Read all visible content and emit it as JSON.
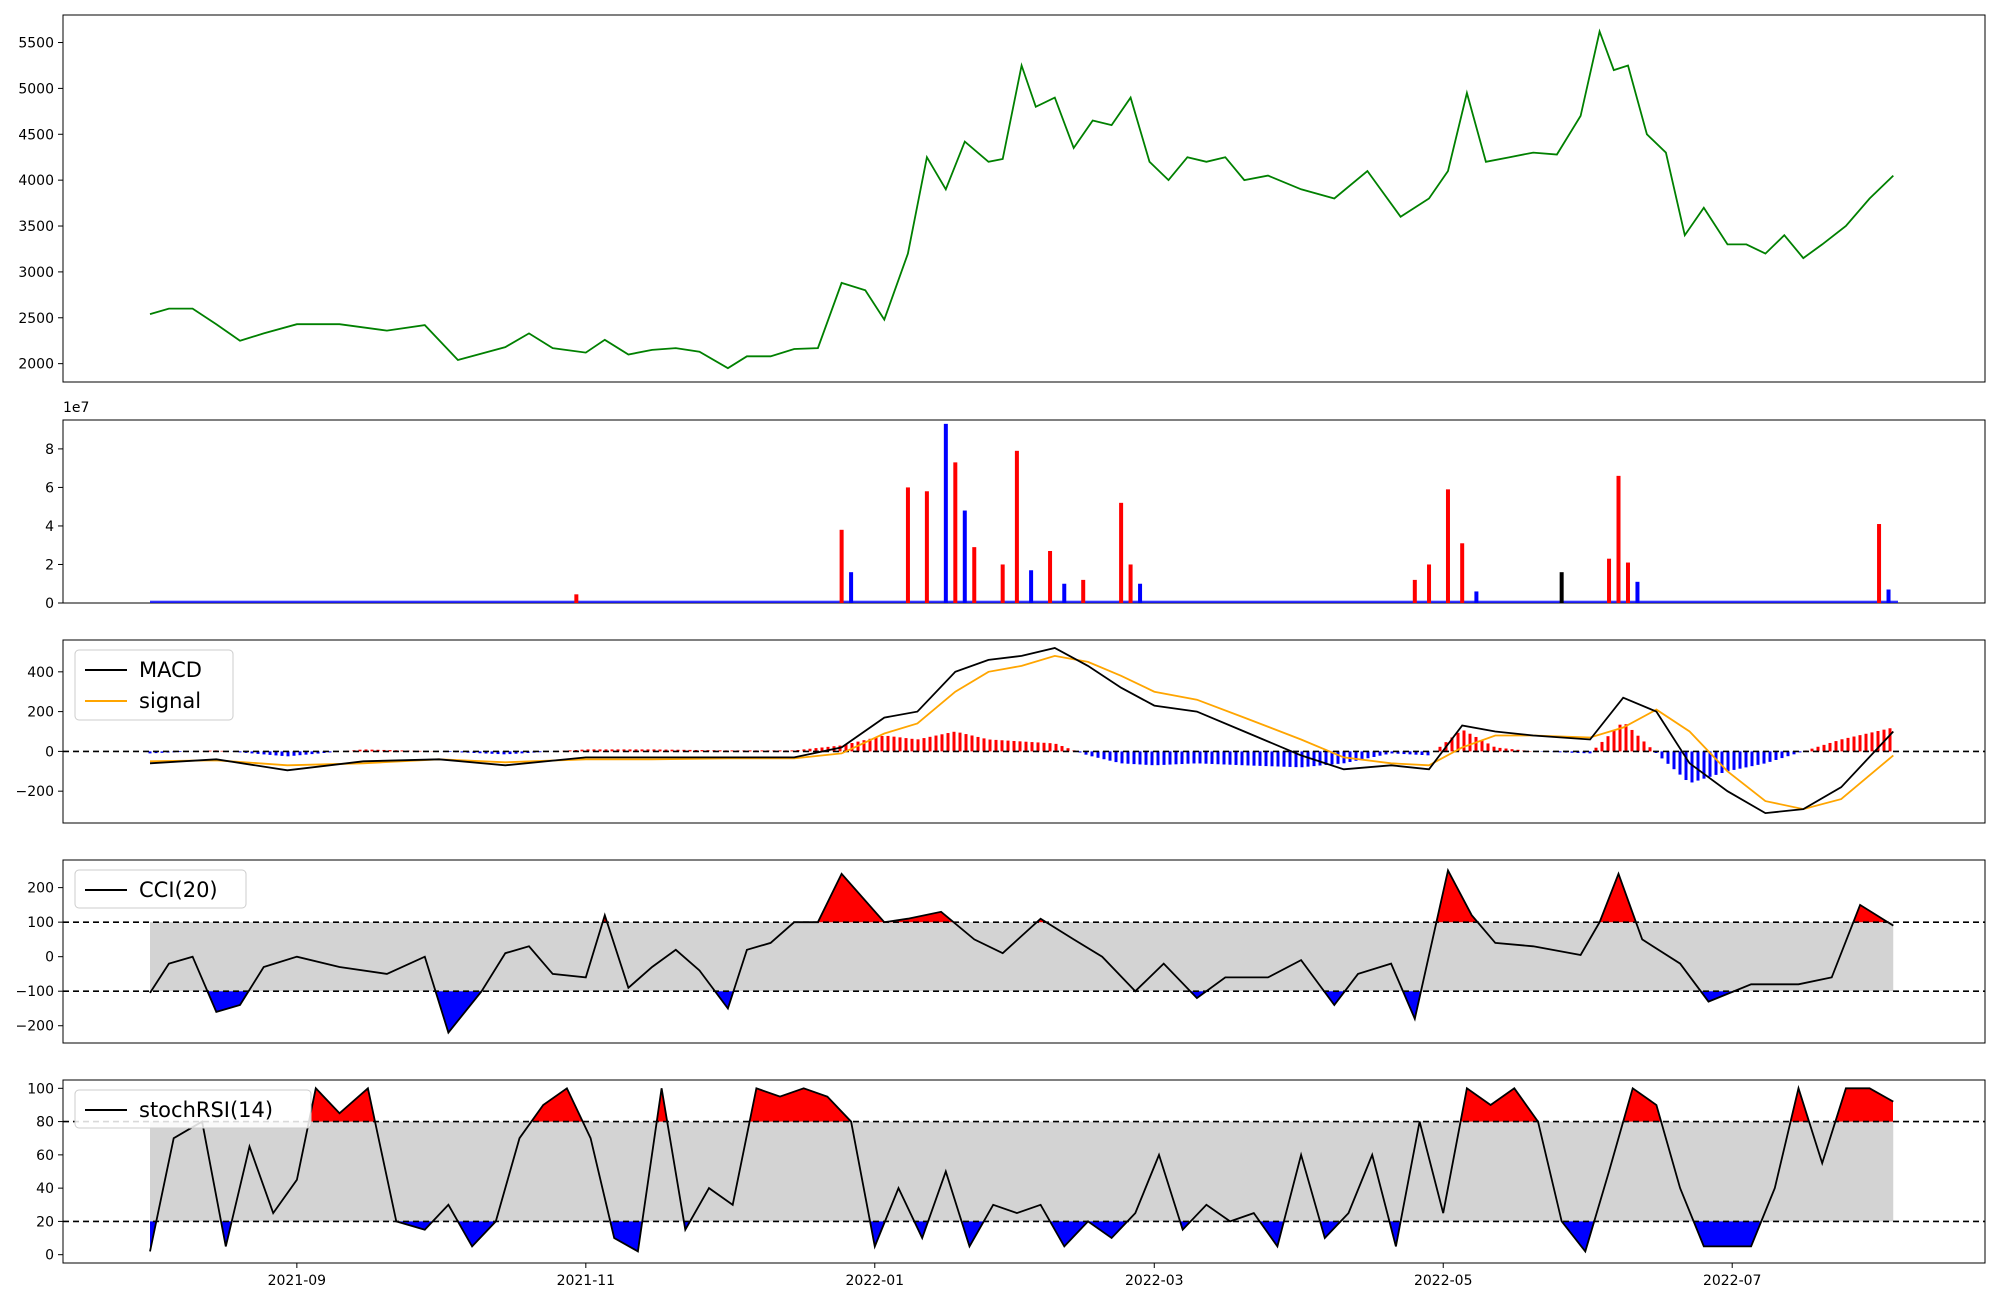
{
  "colors": {
    "price": "#008000",
    "up": "#ff0000",
    "down": "#0000ff",
    "neutral": "#000000",
    "macd": "#000000",
    "signal": "#ffa500",
    "band": "#d3d3d3",
    "ref_line": "#000000"
  },
  "x_axis": {
    "start_date": "2021-08-01",
    "end_date": "2022-08-05",
    "ticks": [
      "2021-09",
      "2021-11",
      "2022-01",
      "2022-03",
      "2022-05",
      "2022-07"
    ],
    "tick_dates": [
      "2021-09-01",
      "2021-11-01",
      "2022-01-01",
      "2022-03-01",
      "2022-05-01",
      "2022-07-01"
    ]
  },
  "chart_data": [
    {
      "type": "line",
      "name": "price",
      "ylim": [
        1800,
        5800
      ],
      "yticks": [
        2000,
        2500,
        3000,
        3500,
        4000,
        4500,
        5000,
        5500
      ],
      "x": [
        "2021-08-01",
        "2021-08-05",
        "2021-08-10",
        "2021-08-15",
        "2021-08-20",
        "2021-08-25",
        "2021-09-01",
        "2021-09-10",
        "2021-09-20",
        "2021-09-28",
        "2021-10-05",
        "2021-10-15",
        "2021-10-20",
        "2021-10-25",
        "2021-11-01",
        "2021-11-05",
        "2021-11-10",
        "2021-11-15",
        "2021-11-20",
        "2021-11-25",
        "2021-12-01",
        "2021-12-05",
        "2021-12-10",
        "2021-12-15",
        "2021-12-20",
        "2021-12-25",
        "2021-12-30",
        "2022-01-03",
        "2022-01-08",
        "2022-01-12",
        "2022-01-16",
        "2022-01-20",
        "2022-01-25",
        "2022-01-28",
        "2022-02-01",
        "2022-02-04",
        "2022-02-08",
        "2022-02-12",
        "2022-02-16",
        "2022-02-20",
        "2022-02-24",
        "2022-02-28",
        "2022-03-04",
        "2022-03-08",
        "2022-03-12",
        "2022-03-16",
        "2022-03-20",
        "2022-03-25",
        "2022-04-01",
        "2022-04-08",
        "2022-04-15",
        "2022-04-22",
        "2022-04-28",
        "2022-05-02",
        "2022-05-06",
        "2022-05-10",
        "2022-05-15",
        "2022-05-20",
        "2022-05-25",
        "2022-05-30",
        "2022-06-03",
        "2022-06-06",
        "2022-06-09",
        "2022-06-13",
        "2022-06-17",
        "2022-06-21",
        "2022-06-25",
        "2022-06-30",
        "2022-07-04",
        "2022-07-08",
        "2022-07-12",
        "2022-07-16",
        "2022-07-20",
        "2022-07-25",
        "2022-07-30",
        "2022-08-04"
      ],
      "y": [
        2540,
        2600,
        2600,
        2430,
        2250,
        2330,
        2430,
        2430,
        2360,
        2420,
        2040,
        2180,
        2330,
        2170,
        2120,
        2260,
        2100,
        2150,
        2170,
        2130,
        1950,
        2080,
        2080,
        2160,
        2170,
        2880,
        2800,
        2480,
        3200,
        4250,
        3900,
        4420,
        4200,
        4230,
        5250,
        4800,
        4900,
        4350,
        4650,
        4600,
        4900,
        4200,
        4000,
        4250,
        4200,
        4250,
        4000,
        4050,
        3900,
        3800,
        4100,
        3600,
        3800,
        4100,
        4950,
        4200,
        4250,
        4300,
        4280,
        4700,
        5620,
        5200,
        5250,
        4500,
        4300,
        3400,
        3700,
        3300,
        3300,
        3200,
        3400,
        3150,
        3300,
        3500,
        3800,
        4050
      ]
    },
    {
      "type": "bar",
      "name": "volume",
      "ylim": [
        0,
        95000000
      ],
      "yticks": [
        0,
        20000000,
        40000000,
        60000000,
        80000000
      ],
      "ytick_labels": [
        "0",
        "2",
        "4",
        "6",
        "8"
      ],
      "multiplier_label": "1e7",
      "x": [
        "2021-10-30",
        "2021-12-25",
        "2021-12-27",
        "2022-01-08",
        "2022-01-12",
        "2022-01-16",
        "2022-01-18",
        "2022-01-20",
        "2022-01-22",
        "2022-01-28",
        "2022-01-31",
        "2022-02-03",
        "2022-02-07",
        "2022-02-10",
        "2022-02-14",
        "2022-02-22",
        "2022-02-24",
        "2022-02-26",
        "2022-04-25",
        "2022-04-28",
        "2022-05-02",
        "2022-05-05",
        "2022-05-08",
        "2022-05-26",
        "2022-06-05",
        "2022-06-07",
        "2022-06-09",
        "2022-06-11",
        "2022-08-01",
        "2022-08-03"
      ],
      "values": [
        4500000,
        38000000,
        16000000,
        60000000,
        58000000,
        93000000,
        73000000,
        48000000,
        29000000,
        20000000,
        79000000,
        17000000,
        27000000,
        10000000,
        12000000,
        52000000,
        20000000,
        10000000,
        12000000,
        20000000,
        59000000,
        31000000,
        6000000,
        16000000,
        23000000,
        66000000,
        21000000,
        11000000,
        41000000,
        7000000
      ],
      "colors": [
        "up",
        "up",
        "down",
        "up",
        "up",
        "down",
        "up",
        "down",
        "up",
        "up",
        "up",
        "down",
        "up",
        "down",
        "up",
        "up",
        "up",
        "down",
        "up",
        "up",
        "up",
        "up",
        "down",
        "neutral",
        "up",
        "up",
        "up",
        "down",
        "up",
        "down"
      ],
      "baseline": {
        "value": 1200000,
        "from": "2021-08-01",
        "to": "2022-08-05"
      }
    },
    {
      "type": "line",
      "name": "macd",
      "ylim": [
        -360,
        560
      ],
      "yticks": [
        -200,
        0,
        200,
        400
      ],
      "reference_lines": [
        0
      ],
      "legend": [
        "MACD",
        "signal"
      ],
      "legend_position": "upper-left",
      "x": [
        "2021-08-01",
        "2021-08-15",
        "2021-08-30",
        "2021-09-15",
        "2021-10-01",
        "2021-10-15",
        "2021-11-01",
        "2021-11-15",
        "2021-12-01",
        "2021-12-15",
        "2021-12-25",
        "2022-01-03",
        "2022-01-10",
        "2022-01-18",
        "2022-01-25",
        "2022-02-01",
        "2022-02-08",
        "2022-02-15",
        "2022-02-22",
        "2022-03-01",
        "2022-03-10",
        "2022-03-20",
        "2022-04-01",
        "2022-04-10",
        "2022-04-20",
        "2022-04-28",
        "2022-05-05",
        "2022-05-12",
        "2022-05-20",
        "2022-06-01",
        "2022-06-08",
        "2022-06-15",
        "2022-06-22",
        "2022-06-30",
        "2022-07-08",
        "2022-07-16",
        "2022-07-24",
        "2022-08-04"
      ],
      "series": [
        {
          "name": "MACD",
          "values": [
            -60,
            -40,
            -95,
            -50,
            -40,
            -70,
            -30,
            -30,
            -30,
            -30,
            20,
            170,
            200,
            400,
            460,
            480,
            520,
            430,
            320,
            230,
            200,
            100,
            -20,
            -90,
            -70,
            -90,
            130,
            100,
            80,
            60,
            270,
            200,
            -60,
            -200,
            -310,
            -290,
            -180,
            100
          ]
        },
        {
          "name": "signal",
          "values": [
            -50,
            -45,
            -70,
            -60,
            -40,
            -55,
            -40,
            -40,
            -35,
            -35,
            -10,
            90,
            140,
            300,
            400,
            430,
            480,
            450,
            380,
            300,
            260,
            170,
            60,
            -30,
            -60,
            -70,
            20,
            80,
            80,
            70,
            120,
            210,
            100,
            -100,
            -250,
            -290,
            -240,
            -20
          ]
        }
      ]
    },
    {
      "type": "line",
      "name": "cci",
      "ylim": [
        -250,
        280
      ],
      "yticks": [
        -200,
        -100,
        0,
        100,
        200
      ],
      "reference_lines": [
        -100,
        100
      ],
      "legend": [
        "CCI(20)"
      ],
      "legend_position": "upper-left",
      "x": [
        "2021-08-01",
        "2021-08-05",
        "2021-08-10",
        "2021-08-15",
        "2021-08-20",
        "2021-08-25",
        "2021-09-01",
        "2021-09-10",
        "2021-09-20",
        "2021-09-28",
        "2021-10-03",
        "2021-10-10",
        "2021-10-15",
        "2021-10-20",
        "2021-10-25",
        "2021-11-01",
        "2021-11-05",
        "2021-11-10",
        "2021-11-15",
        "2021-11-20",
        "2021-11-25",
        "2021-12-01",
        "2021-12-05",
        "2021-12-10",
        "2021-12-15",
        "2021-12-20",
        "2021-12-25",
        "2022-01-03",
        "2022-01-08",
        "2022-01-15",
        "2022-01-22",
        "2022-01-28",
        "2022-02-05",
        "2022-02-12",
        "2022-02-18",
        "2022-02-25",
        "2022-03-03",
        "2022-03-10",
        "2022-03-16",
        "2022-03-25",
        "2022-04-01",
        "2022-04-08",
        "2022-04-13",
        "2022-04-20",
        "2022-04-25",
        "2022-05-02",
        "2022-05-07",
        "2022-05-12",
        "2022-05-20",
        "2022-05-30",
        "2022-06-03",
        "2022-06-07",
        "2022-06-12",
        "2022-06-20",
        "2022-06-26",
        "2022-07-05",
        "2022-07-15",
        "2022-07-22",
        "2022-07-28",
        "2022-08-04"
      ],
      "values": [
        -105,
        -20,
        0,
        -160,
        -140,
        -30,
        0,
        -30,
        -50,
        0,
        -220,
        -100,
        10,
        30,
        -50,
        -60,
        120,
        -90,
        -30,
        20,
        -40,
        -150,
        20,
        40,
        100,
        100,
        240,
        100,
        110,
        130,
        50,
        10,
        110,
        50,
        0,
        -100,
        -20,
        -120,
        -60,
        -60,
        -10,
        -140,
        -50,
        -20,
        -180,
        250,
        120,
        40,
        30,
        5,
        100,
        240,
        50,
        -20,
        -130,
        -80,
        -80,
        -60,
        150,
        90
      ]
    },
    {
      "type": "line",
      "name": "stochrsi",
      "ylim": [
        -5,
        105
      ],
      "yticks": [
        0,
        20,
        40,
        60,
        80,
        100
      ],
      "reference_lines": [
        20,
        80
      ],
      "legend": [
        "stochRSI(14)"
      ],
      "legend_position": "upper-left",
      "x": [
        "2021-08-01",
        "2021-08-06",
        "2021-08-12",
        "2021-08-17",
        "2021-08-22",
        "2021-08-27",
        "2021-09-01",
        "2021-09-05",
        "2021-09-10",
        "2021-09-16",
        "2021-09-22",
        "2021-09-28",
        "2021-10-03",
        "2021-10-08",
        "2021-10-13",
        "2021-10-18",
        "2021-10-23",
        "2021-10-28",
        "2021-11-02",
        "2021-11-07",
        "2021-11-12",
        "2021-11-17",
        "2021-11-22",
        "2021-11-27",
        "2021-12-02",
        "2021-12-07",
        "2021-12-12",
        "2021-12-17",
        "2021-12-22",
        "2021-12-27",
        "2022-01-01",
        "2022-01-06",
        "2022-01-11",
        "2022-01-16",
        "2022-01-21",
        "2022-01-26",
        "2022-01-31",
        "2022-02-05",
        "2022-02-10",
        "2022-02-15",
        "2022-02-20",
        "2022-02-25",
        "2022-03-02",
        "2022-03-07",
        "2022-03-12",
        "2022-03-17",
        "2022-03-22",
        "2022-03-27",
        "2022-04-01",
        "2022-04-06",
        "2022-04-11",
        "2022-04-16",
        "2022-04-21",
        "2022-04-26",
        "2022-05-01",
        "2022-05-06",
        "2022-05-11",
        "2022-05-16",
        "2022-05-21",
        "2022-05-26",
        "2022-05-31",
        "2022-06-05",
        "2022-06-10",
        "2022-06-15",
        "2022-06-20",
        "2022-06-25",
        "2022-06-30",
        "2022-07-05",
        "2022-07-10",
        "2022-07-15",
        "2022-07-20",
        "2022-07-25",
        "2022-07-30",
        "2022-08-04"
      ],
      "values": [
        2,
        70,
        80,
        5,
        65,
        25,
        45,
        100,
        85,
        100,
        20,
        15,
        30,
        5,
        20,
        70,
        90,
        100,
        70,
        10,
        2,
        100,
        15,
        40,
        30,
        100,
        95,
        100,
        95,
        80,
        5,
        40,
        10,
        50,
        5,
        30,
        25,
        30,
        5,
        20,
        10,
        25,
        60,
        15,
        30,
        20,
        25,
        5,
        60,
        10,
        25,
        60,
        5,
        80,
        25,
        100,
        90,
        100,
        80,
        20,
        2,
        50,
        100,
        90,
        40,
        5,
        5,
        5,
        40,
        100,
        55,
        100,
        100,
        92
      ]
    }
  ]
}
